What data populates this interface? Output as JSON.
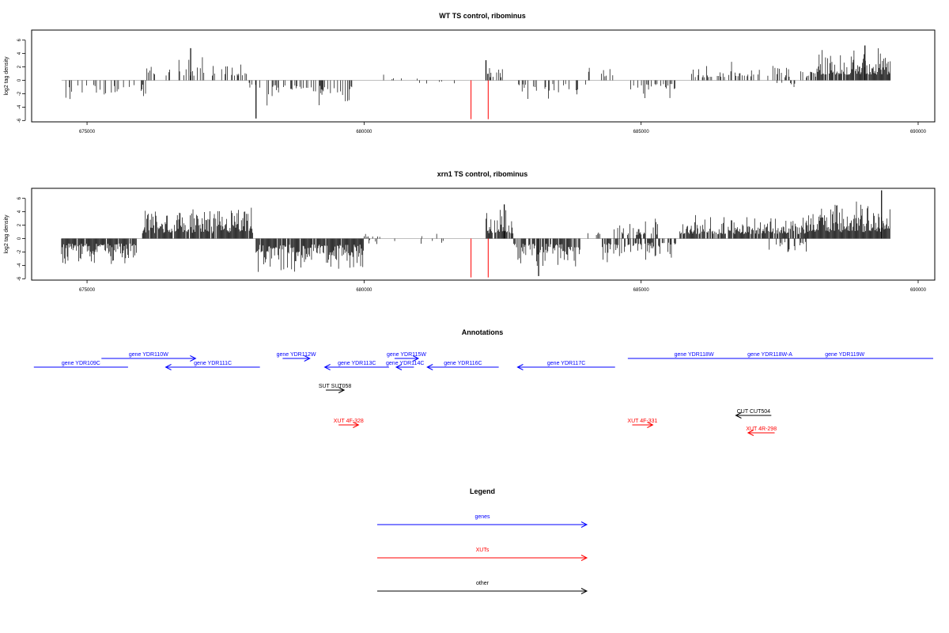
{
  "colors": {
    "genes": "#0000ff",
    "xuts": "#ff0000",
    "other": "#000000",
    "bars": "#000000",
    "marker": "#ff0000",
    "baseline": "#aaaaaa"
  },
  "chart_data": [
    {
      "type": "bar",
      "title": "WT TS control, ribominus",
      "ylabel": "log2 tag density",
      "xlim": [
        674000,
        690300
      ],
      "ylim": [
        -6.2,
        7.5
      ],
      "xticks": [
        675000,
        680000,
        685000,
        690000
      ],
      "yticks": [
        -6,
        -4,
        -2,
        0,
        2,
        4,
        6
      ],
      "grid": false,
      "marker_lines": [
        681930,
        682240
      ],
      "marker_depth": -5.8,
      "segments": [
        {
          "start": 674540,
          "end": 676080,
          "sign": -1,
          "density": 0.25,
          "amp": 2.0,
          "max": 2.8
        },
        {
          "start": 676080,
          "end": 677900,
          "sign": 1,
          "density": 0.3,
          "amp": 2.2,
          "max": 4.6
        },
        {
          "start": 677900,
          "end": 678250,
          "sign": -1,
          "density": 0.1,
          "amp": 1.0,
          "max": 1.2
        },
        {
          "start": 678250,
          "end": 679800,
          "sign": -1,
          "density": 0.45,
          "amp": 2.4,
          "max": 4.0
        },
        {
          "start": 679800,
          "end": 681000,
          "sign": 1,
          "density": 0.04,
          "amp": 0.6,
          "max": 1.0
        },
        {
          "start": 681000,
          "end": 681850,
          "sign": -1,
          "density": 0.03,
          "amp": 0.6,
          "max": 1.0
        },
        {
          "start": 682200,
          "end": 682500,
          "sign": 1,
          "density": 0.5,
          "amp": 1.5,
          "max": 3.0
        },
        {
          "start": 682750,
          "end": 684000,
          "sign": -1,
          "density": 0.3,
          "amp": 1.8,
          "max": 3.6
        },
        {
          "start": 684000,
          "end": 684800,
          "sign": 1,
          "density": 0.1,
          "amp": 1.6,
          "max": 2.0
        },
        {
          "start": 684800,
          "end": 685650,
          "sign": -1,
          "density": 0.35,
          "amp": 1.8,
          "max": 3.8
        },
        {
          "start": 685900,
          "end": 688200,
          "sign": 1,
          "density": 0.35,
          "amp": 1.5,
          "max": 3.0
        },
        {
          "start": 687400,
          "end": 687800,
          "sign": -1,
          "density": 0.15,
          "amp": 1.2,
          "max": 2.0
        },
        {
          "start": 688200,
          "end": 689500,
          "sign": 1,
          "density": 0.95,
          "amp": 2.8,
          "max": 5.2
        }
      ],
      "spikes": [
        {
          "x": 678050,
          "y": -5.7
        },
        {
          "x": 676870,
          "y": 4.8
        },
        {
          "x": 682200,
          "y": 3.0
        },
        {
          "x": 689040,
          "y": 5.2
        }
      ]
    },
    {
      "type": "bar",
      "title": "xrn1 TS control, ribominus",
      "ylabel": "log2 tag density",
      "xlim": [
        674000,
        690300
      ],
      "ylim": [
        -6.2,
        7.5
      ],
      "xticks": [
        675000,
        680000,
        685000,
        690000
      ],
      "yticks": [
        -6,
        -4,
        -2,
        0,
        2,
        4,
        6
      ],
      "grid": false,
      "marker_lines": [
        681930,
        682240
      ],
      "marker_depth": -5.8,
      "segments": [
        {
          "start": 674540,
          "end": 675900,
          "sign": -1,
          "density": 0.95,
          "amp": 2.5,
          "max": 3.8
        },
        {
          "start": 676000,
          "end": 678000,
          "sign": 1,
          "density": 0.95,
          "amp": 2.7,
          "max": 4.8
        },
        {
          "start": 678050,
          "end": 680000,
          "sign": -1,
          "density": 0.95,
          "amp": 3.0,
          "max": 5.8
        },
        {
          "start": 680000,
          "end": 681600,
          "sign": 1,
          "density": 0.08,
          "amp": 0.8,
          "max": 2.8
        },
        {
          "start": 680000,
          "end": 681700,
          "sign": -1,
          "density": 0.06,
          "amp": 0.6,
          "max": 1.0
        },
        {
          "start": 682200,
          "end": 682700,
          "sign": 1,
          "density": 0.9,
          "amp": 2.4,
          "max": 5.0
        },
        {
          "start": 682700,
          "end": 683900,
          "sign": -1,
          "density": 0.85,
          "amp": 2.6,
          "max": 5.6
        },
        {
          "start": 684000,
          "end": 684500,
          "sign": 1,
          "density": 0.08,
          "amp": 1.5,
          "max": 1.5
        },
        {
          "start": 684300,
          "end": 685700,
          "sign": -1,
          "density": 0.55,
          "amp": 2.0,
          "max": 4.6
        },
        {
          "start": 684500,
          "end": 685300,
          "sign": 1,
          "density": 0.5,
          "amp": 1.8,
          "max": 3.8
        },
        {
          "start": 685700,
          "end": 688000,
          "sign": 1,
          "density": 0.85,
          "amp": 2.2,
          "max": 4.4
        },
        {
          "start": 687300,
          "end": 688000,
          "sign": -1,
          "density": 0.25,
          "amp": 1.6,
          "max": 3.0
        },
        {
          "start": 688000,
          "end": 689500,
          "sign": 1,
          "density": 1.0,
          "amp": 3.2,
          "max": 7.2
        }
      ],
      "spikes": [
        {
          "x": 689340,
          "y": 7.2
        },
        {
          "x": 682530,
          "y": 5.1
        },
        {
          "x": 683150,
          "y": -5.6
        }
      ]
    }
  ],
  "annotations": {
    "title": "Annotations",
    "xlim": [
      674000,
      690300
    ],
    "features": [
      {
        "label": "gene YDR109C",
        "kind": "genes",
        "start": 674040,
        "end": 675740,
        "strand": "-",
        "row": 1,
        "arrow": false
      },
      {
        "label": "gene YDR110W",
        "kind": "genes",
        "start": 675260,
        "end": 676960,
        "strand": "+",
        "row": 0,
        "arrow": true
      },
      {
        "label": "gene YDR111C",
        "kind": "genes",
        "start": 676420,
        "end": 678120,
        "strand": "-",
        "row": 1,
        "arrow": true
      },
      {
        "label": "gene YDR112W",
        "kind": "genes",
        "start": 678530,
        "end": 679020,
        "strand": "+",
        "row": 0,
        "arrow": true
      },
      {
        "label": "gene YDR113C",
        "kind": "genes",
        "start": 679290,
        "end": 680450,
        "strand": "-",
        "row": 1,
        "arrow": true
      },
      {
        "label": "gene YDR115W",
        "kind": "genes",
        "start": 680550,
        "end": 680980,
        "strand": "+",
        "row": 0,
        "arrow": true
      },
      {
        "label": "gene YDR114C",
        "kind": "genes",
        "start": 680580,
        "end": 680900,
        "strand": "-",
        "row": 1,
        "arrow": true
      },
      {
        "label": "gene YDR116C",
        "kind": "genes",
        "start": 681140,
        "end": 682430,
        "strand": "-",
        "row": 1,
        "arrow": true
      },
      {
        "label": "gene YDR117C",
        "kind": "genes",
        "start": 682770,
        "end": 684530,
        "strand": "-",
        "row": 1,
        "arrow": true
      },
      {
        "label": "gene YDR118W",
        "kind": "genes",
        "start": 684760,
        "end": 687150,
        "strand": "+",
        "row": 0,
        "arrow": false
      },
      {
        "label": "gene YDR118W-A",
        "kind": "genes",
        "start": 687100,
        "end": 687550,
        "strand": "+",
        "row": 0,
        "arrow": false
      },
      {
        "label": "gene YDR119W",
        "kind": "genes",
        "start": 687080,
        "end": 690300,
        "strand": "+",
        "row": 0,
        "arrow": false
      },
      {
        "label": "SUT SUT058",
        "kind": "other",
        "start": 679310,
        "end": 679640,
        "strand": "+",
        "row": 3,
        "arrow": true
      },
      {
        "label": "CUT CUT504",
        "kind": "other",
        "start": 686710,
        "end": 687350,
        "strand": "-",
        "row": 5,
        "arrow": true
      },
      {
        "label": "XUT 4F-328",
        "kind": "xuts",
        "start": 679540,
        "end": 679900,
        "strand": "+",
        "row": 6,
        "arrow": true
      },
      {
        "label": "XUT 4F-331",
        "kind": "xuts",
        "start": 684840,
        "end": 685210,
        "strand": "+",
        "row": 6,
        "arrow": true
      },
      {
        "label": "XUT 4R-298",
        "kind": "xuts",
        "start": 686930,
        "end": 687410,
        "strand": "-",
        "row": 7,
        "arrow": true
      }
    ]
  },
  "legend": {
    "title": "Legend",
    "items": [
      {
        "label": "genes",
        "kind": "genes"
      },
      {
        "label": "XUTs",
        "kind": "xuts"
      },
      {
        "label": "other",
        "kind": "other"
      }
    ]
  }
}
